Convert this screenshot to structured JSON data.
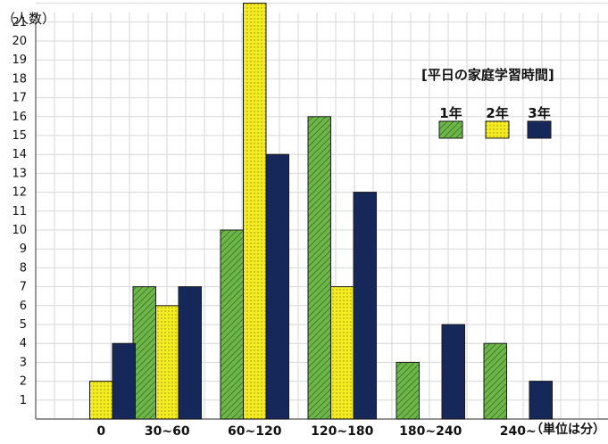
{
  "chart_data": {
    "type": "bar",
    "title": "[平日の家庭学習時間]",
    "ylabel": "（人数）",
    "unit_note": "（単位は分）",
    "categories": [
      "0",
      "30~60",
      "60~120",
      "120~180",
      "180~240",
      "240~"
    ],
    "y_ticks": [
      "1",
      "2",
      "3",
      "4",
      "5",
      "6",
      "7",
      "8",
      "9",
      "10",
      "11",
      "12",
      "13",
      "14",
      "15",
      "16",
      "17",
      "18",
      "19",
      "20",
      "21"
    ],
    "ylim": [
      0,
      22
    ],
    "grid": true,
    "legend_position": "top-right",
    "series": [
      {
        "name": "1年",
        "values": [
          0,
          7,
          10,
          16,
          3,
          4
        ],
        "color": "#5aa33c"
      },
      {
        "name": "2年",
        "values": [
          2,
          6,
          22,
          7,
          0,
          0
        ],
        "color": "#f2ea1c"
      },
      {
        "name": "3年",
        "values": [
          4,
          7,
          14,
          12,
          5,
          2
        ],
        "color": "#16285a"
      }
    ]
  }
}
